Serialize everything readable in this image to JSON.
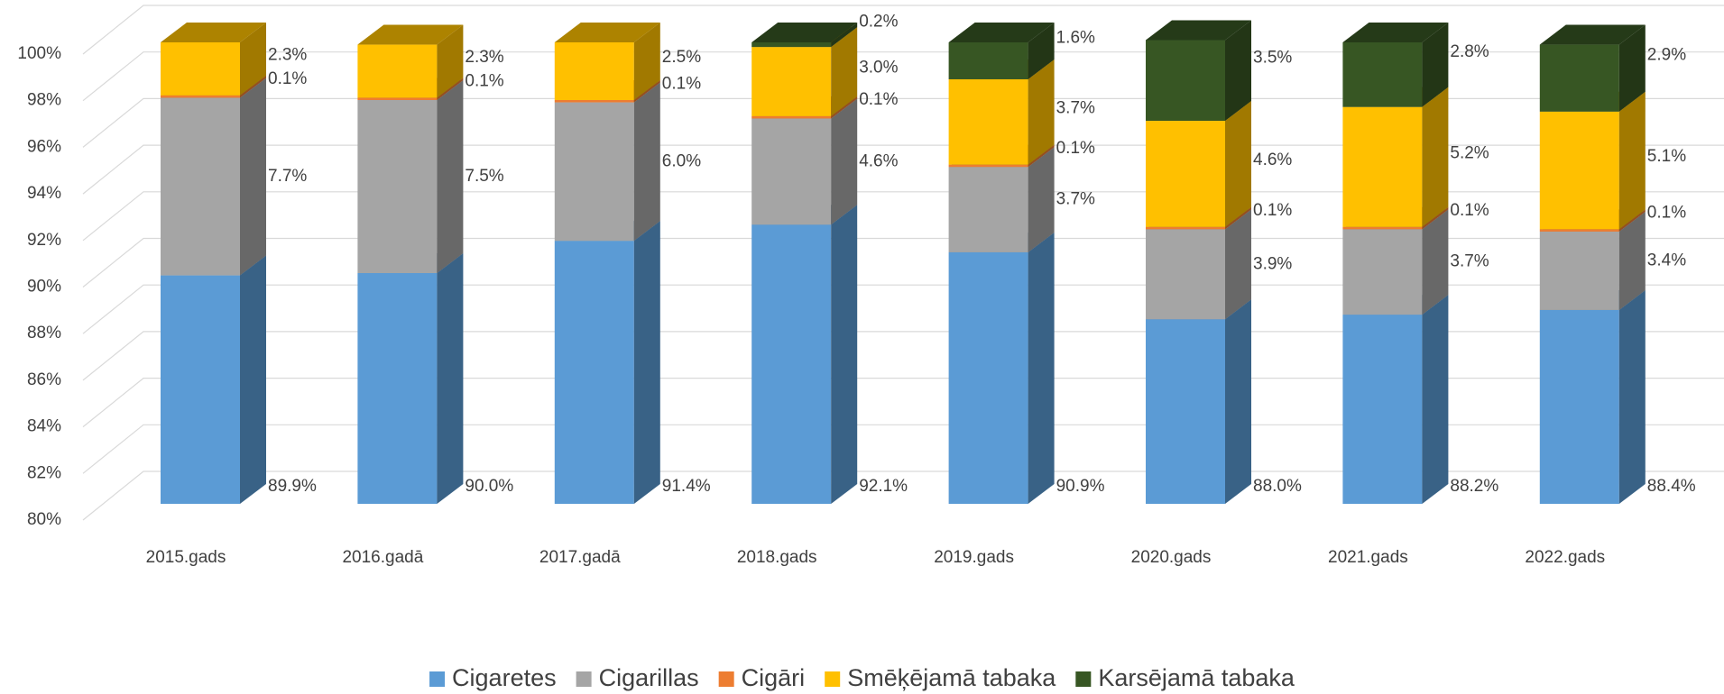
{
  "chart_data": {
    "type": "stacked_bar_3d",
    "categories": [
      "2015.gads",
      "2016.gadā",
      "2017.gadā",
      "2018.gads",
      "2019.gads",
      "2020.gads",
      "2021.gads",
      "2022.gads"
    ],
    "series": [
      {
        "name": "Cigaretes",
        "color": "#5b9bd5",
        "label_color": "#0070c0",
        "values": [
          89.9,
          90.0,
          91.4,
          92.1,
          90.9,
          88.0,
          88.2,
          88.4
        ],
        "value_labels": [
          "89.9%",
          "90.0%",
          "91.4%",
          "92.1%",
          "90.9%",
          "88.0%",
          "88.2%",
          "88.4%"
        ]
      },
      {
        "name": "Cigarillas",
        "color": "#a5a5a5",
        "label_color": "#7f7f7f",
        "values": [
          7.7,
          7.5,
          6.0,
          4.6,
          3.7,
          3.9,
          3.7,
          3.4
        ],
        "value_labels": [
          "7.7%",
          "7.5%",
          "6.0%",
          "4.6%",
          "3.7%",
          "3.9%",
          "3.7%",
          "3.4%"
        ]
      },
      {
        "name": "Cigāri",
        "color": "#ed7d31",
        "label_color": "#ed7d31",
        "values": [
          0.1,
          0.1,
          0.1,
          0.1,
          0.1,
          0.1,
          0.1,
          0.1
        ],
        "value_labels": [
          "0.1%",
          "0.1%",
          "0.1%",
          "0.1%",
          "0.1%",
          "0.1%",
          "0.1%",
          "0.1%"
        ]
      },
      {
        "name": "Smēķējamā tabaka",
        "color": "#ffc000",
        "label_color": "#ffc000",
        "values": [
          2.3,
          2.3,
          2.5,
          3.0,
          3.7,
          4.6,
          5.2,
          5.1
        ],
        "value_labels": [
          "2.3%",
          "2.3%",
          "2.5%",
          "3.0%",
          "3.7%",
          "4.6%",
          "5.2%",
          "5.1%"
        ]
      },
      {
        "name": "Karsējamā tabaka",
        "color": "#375623",
        "label_color": "#375623",
        "values": [
          null,
          null,
          null,
          0.2,
          1.6,
          3.5,
          2.8,
          2.9
        ],
        "value_labels": [
          null,
          null,
          null,
          "0.2%",
          "1.6%",
          "3.5%",
          "2.8%",
          "2.9%"
        ]
      }
    ],
    "ylim": [
      80,
      100
    ],
    "yticks": [
      {
        "value": 80,
        "label": "80%"
      },
      {
        "value": 82,
        "label": "82%"
      },
      {
        "value": 84,
        "label": "84%"
      },
      {
        "value": 86,
        "label": "86%"
      },
      {
        "value": 88,
        "label": "88%"
      },
      {
        "value": 90,
        "label": "90%"
      },
      {
        "value": 92,
        "label": "92%"
      },
      {
        "value": 94,
        "label": "94%"
      },
      {
        "value": 96,
        "label": "96%"
      },
      {
        "value": 98,
        "label": "98%"
      },
      {
        "value": 100,
        "label": "100%"
      }
    ],
    "grid": true,
    "legend": "bottom"
  }
}
